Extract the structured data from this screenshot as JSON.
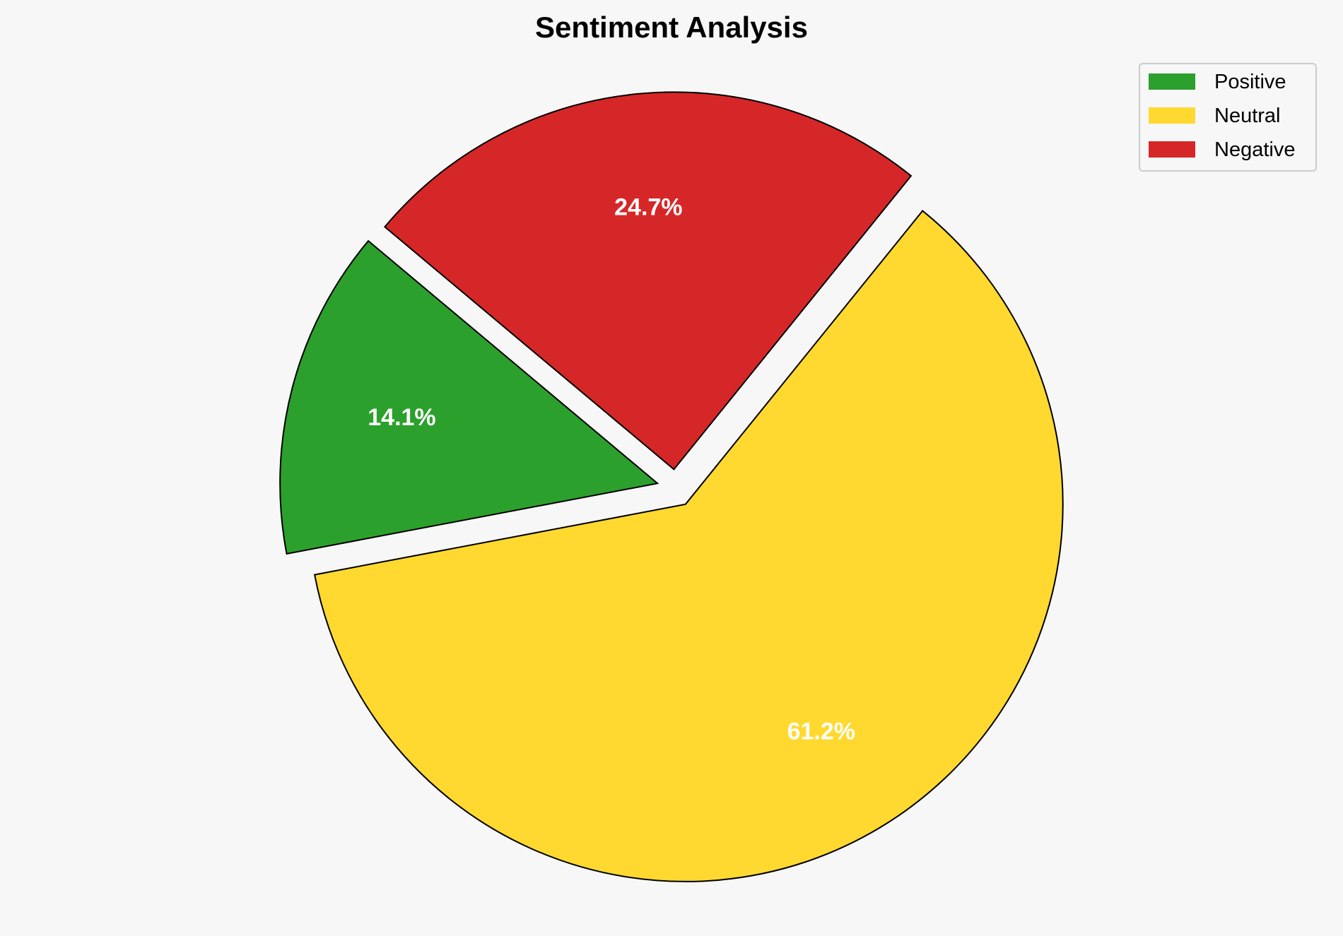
{
  "chart_data": {
    "type": "pie",
    "title": "Sentiment Analysis",
    "categories": [
      "Positive",
      "Neutral",
      "Negative"
    ],
    "values": [
      14.1,
      61.2,
      24.7
    ],
    "labels": [
      "14.1%",
      "61.2%",
      "24.7%"
    ],
    "colors": [
      "#2ca02c",
      "#ffd92f",
      "#d62728"
    ],
    "explode": [
      0.05,
      0.05,
      0.05
    ],
    "start_angle": 140,
    "direction": "counterclockwise",
    "label_distance": 0.7,
    "edge_color": "#000000",
    "label_color": "#ffffff",
    "legend": {
      "position": "top-right",
      "entries": [
        "Positive",
        "Neutral",
        "Negative"
      ]
    },
    "background": "#f7f7f7"
  }
}
